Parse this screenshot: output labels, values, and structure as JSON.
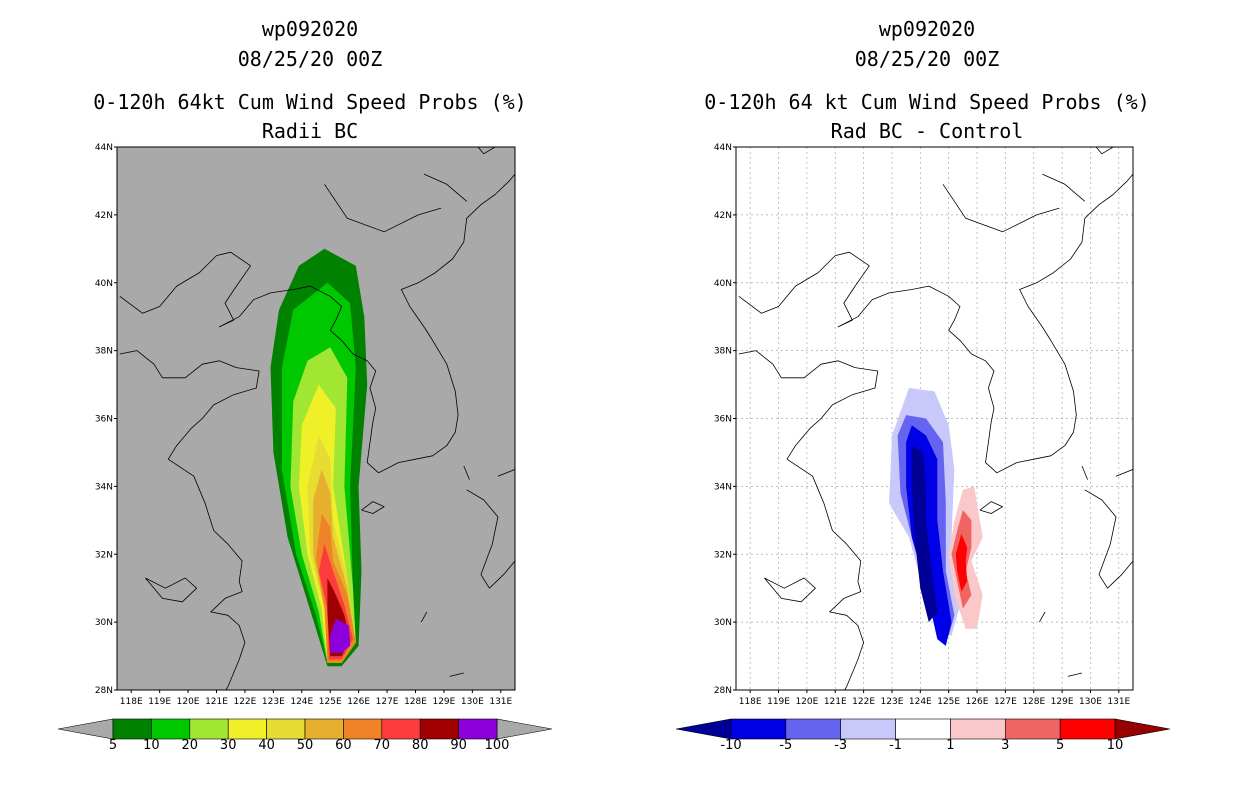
{
  "chart_data": [
    {
      "type": "contour-map",
      "title_lines": [
        "wp092020",
        "08/25/20 00Z",
        "0-120h 64kt Cum Wind Speed Probs (%)",
        "Radii BC"
      ],
      "lon_range": [
        117.5,
        131.5
      ],
      "lat_range": [
        28,
        44
      ],
      "x_ticks": [
        "118E",
        "119E",
        "120E",
        "121E",
        "122E",
        "123E",
        "124E",
        "125E",
        "126E",
        "127E",
        "128E",
        "129E",
        "130E",
        "131E"
      ],
      "y_ticks": [
        "28N",
        "30N",
        "32N",
        "34N",
        "36N",
        "38N",
        "40N",
        "42N",
        "44N"
      ],
      "background": "#a9a9a9",
      "grid": false,
      "colorbar": {
        "levels": [
          "5",
          "10",
          "20",
          "30",
          "40",
          "50",
          "60",
          "70",
          "80",
          "90",
          "100"
        ],
        "colors": [
          "#008200",
          "#00c800",
          "#a0e632",
          "#f0f028",
          "#e6dc32",
          "#e6af2d",
          "#f08228",
          "#fa3c3c",
          "#a00000",
          "#8c00dc"
        ],
        "under_color": "#a9a9a9",
        "over_color": "#a9a9a9"
      },
      "contours": [
        {
          "level": 5,
          "color": "#008200",
          "points": [
            [
              124.8,
              41.0
            ],
            [
              125.9,
              40.5
            ],
            [
              126.2,
              39.0
            ],
            [
              126.3,
              37.0
            ],
            [
              126.0,
              34.0
            ],
            [
              126.1,
              31.5
            ],
            [
              126.0,
              29.3
            ],
            [
              125.4,
              28.7
            ],
            [
              124.9,
              28.7
            ],
            [
              124.5,
              29.8
            ],
            [
              123.5,
              32.5
            ],
            [
              123.0,
              35.0
            ],
            [
              122.9,
              37.5
            ],
            [
              123.2,
              39.2
            ],
            [
              123.9,
              40.5
            ]
          ]
        },
        {
          "level": 10,
          "color": "#00c800",
          "points": [
            [
              124.9,
              40.0
            ],
            [
              125.7,
              39.4
            ],
            [
              125.9,
              37.5
            ],
            [
              125.7,
              34.0
            ],
            [
              125.8,
              31.0
            ],
            [
              125.9,
              29.4
            ],
            [
              125.4,
              28.8
            ],
            [
              124.9,
              28.8
            ],
            [
              124.5,
              30.2
            ],
            [
              123.8,
              32.0
            ],
            [
              123.3,
              34.5
            ],
            [
              123.3,
              37.5
            ],
            [
              123.7,
              39.2
            ]
          ]
        },
        {
          "level": 20,
          "color": "#a0e632",
          "points": [
            [
              125.0,
              38.1
            ],
            [
              125.6,
              37.2
            ],
            [
              125.5,
              34.0
            ],
            [
              125.8,
              31.0
            ],
            [
              125.9,
              29.4
            ],
            [
              125.4,
              28.8
            ],
            [
              124.9,
              28.8
            ],
            [
              124.6,
              30.3
            ],
            [
              124.0,
              32.0
            ],
            [
              123.6,
              34.0
            ],
            [
              123.7,
              36.5
            ],
            [
              124.2,
              37.7
            ]
          ]
        },
        {
          "level": 30,
          "color": "#f0f028",
          "points": [
            [
              124.6,
              37.0
            ],
            [
              125.2,
              36.3
            ],
            [
              125.1,
              34.0
            ],
            [
              125.6,
              31.3
            ],
            [
              125.9,
              29.4
            ],
            [
              125.4,
              28.8
            ],
            [
              124.9,
              28.8
            ],
            [
              124.7,
              30.4
            ],
            [
              124.2,
              32.0
            ],
            [
              123.9,
              34.0
            ],
            [
              124.0,
              35.8
            ]
          ]
        },
        {
          "level": 40,
          "color": "#e6dc32",
          "points": [
            [
              124.6,
              35.5
            ],
            [
              125.0,
              34.8
            ],
            [
              125.1,
              33.0
            ],
            [
              125.6,
              31.3
            ],
            [
              125.9,
              29.4
            ],
            [
              125.4,
              28.8
            ],
            [
              124.9,
              28.8
            ],
            [
              124.8,
              30.4
            ],
            [
              124.3,
              32.0
            ],
            [
              124.2,
              34.0
            ]
          ]
        },
        {
          "level": 50,
          "color": "#e6af2d",
          "points": [
            [
              124.7,
              34.5
            ],
            [
              125.0,
              33.8
            ],
            [
              125.1,
              32.5
            ],
            [
              125.6,
              31.0
            ],
            [
              125.9,
              29.4
            ],
            [
              125.4,
              28.8
            ],
            [
              124.9,
              28.8
            ],
            [
              124.8,
              30.4
            ],
            [
              124.4,
              32.0
            ],
            [
              124.4,
              33.6
            ]
          ]
        },
        {
          "level": 60,
          "color": "#f08228",
          "points": [
            [
              124.7,
              33.2
            ],
            [
              125.0,
              32.8
            ],
            [
              125.1,
              31.8
            ],
            [
              125.6,
              30.8
            ],
            [
              125.9,
              29.4
            ],
            [
              125.4,
              28.8
            ],
            [
              124.9,
              28.8
            ],
            [
              124.8,
              30.4
            ],
            [
              124.5,
              31.9
            ]
          ]
        },
        {
          "level": 70,
          "color": "#fa3c3c",
          "points": [
            [
              124.8,
              32.3
            ],
            [
              125.1,
              31.5
            ],
            [
              125.5,
              30.5
            ],
            [
              125.8,
              29.5
            ],
            [
              125.4,
              28.9
            ],
            [
              124.95,
              28.9
            ],
            [
              124.9,
              30.4
            ],
            [
              124.6,
              31.5
            ]
          ]
        },
        {
          "level": 80,
          "color": "#a00000",
          "points": [
            [
              124.9,
              31.3
            ],
            [
              125.2,
              30.8
            ],
            [
              125.5,
              30.2
            ],
            [
              125.7,
              29.5
            ],
            [
              125.4,
              29.0
            ],
            [
              125.0,
              29.0
            ],
            [
              124.9,
              30.3
            ]
          ]
        },
        {
          "level": 90,
          "color": "#8c00dc",
          "points": [
            [
              125.2,
              30.1
            ],
            [
              125.65,
              29.9
            ],
            [
              125.7,
              29.3
            ],
            [
              125.4,
              29.1
            ],
            [
              125.0,
              29.1
            ],
            [
              125.0,
              29.6
            ]
          ]
        }
      ]
    },
    {
      "type": "contour-map",
      "title_lines": [
        "wp092020",
        "08/25/20 00Z",
        "0-120h 64 kt Cum Wind Speed Probs (%)",
        "Rad BC - Control"
      ],
      "lon_range": [
        117.5,
        131.5
      ],
      "lat_range": [
        28,
        44
      ],
      "x_ticks": [
        "118E",
        "119E",
        "120E",
        "121E",
        "122E",
        "123E",
        "124E",
        "125E",
        "126E",
        "127E",
        "128E",
        "129E",
        "130E",
        "131E"
      ],
      "y_ticks": [
        "28N",
        "30N",
        "32N",
        "34N",
        "36N",
        "38N",
        "40N",
        "42N",
        "44N"
      ],
      "background": "#ffffff",
      "grid": true,
      "colorbar": {
        "levels": [
          "-10",
          "-5",
          "-3",
          "-1",
          "1",
          "3",
          "5",
          "10"
        ],
        "colors": [
          "#0000e6",
          "#6464f0",
          "#c8c8fa",
          "#ffffff",
          "#fac8c8",
          "#f06464",
          "#ff0000"
        ],
        "under_color": "#000096",
        "over_color": "#960000"
      },
      "contours": [
        {
          "level": -1,
          "color": "#c8c8fa",
          "points": [
            [
              123.6,
              36.9
            ],
            [
              124.5,
              36.8
            ],
            [
              125.0,
              35.8
            ],
            [
              125.2,
              34.5
            ],
            [
              125.1,
              32.5
            ],
            [
              125.4,
              30.5
            ],
            [
              125.1,
              29.6
            ],
            [
              124.7,
              29.7
            ],
            [
              124.1,
              31.0
            ],
            [
              123.6,
              32.5
            ],
            [
              122.9,
              33.5
            ],
            [
              123.0,
              35.5
            ]
          ]
        },
        {
          "level": -3,
          "color": "#6464f0",
          "points": [
            [
              123.5,
              36.1
            ],
            [
              124.2,
              36.0
            ],
            [
              124.8,
              35.3
            ],
            [
              124.9,
              33.5
            ],
            [
              124.9,
              31.5
            ],
            [
              125.2,
              30.2
            ],
            [
              125.0,
              29.6
            ],
            [
              124.7,
              29.7
            ],
            [
              124.2,
              31.2
            ],
            [
              123.7,
              32.5
            ],
            [
              123.3,
              33.8
            ],
            [
              123.2,
              35.5
            ]
          ]
        },
        {
          "level": -5,
          "color": "#0000e6",
          "points": [
            [
              123.7,
              35.8
            ],
            [
              124.2,
              35.5
            ],
            [
              124.6,
              34.8
            ],
            [
              124.6,
              33.0
            ],
            [
              124.8,
              31.5
            ],
            [
              125.1,
              30.0
            ],
            [
              124.9,
              29.3
            ],
            [
              124.6,
              29.5
            ],
            [
              124.2,
              31.0
            ],
            [
              123.7,
              32.5
            ],
            [
              123.5,
              34.0
            ],
            [
              123.5,
              35.3
            ]
          ]
        },
        {
          "level": -10,
          "color": "#000096",
          "points": [
            [
              123.7,
              35.2
            ],
            [
              124.1,
              35.0
            ],
            [
              124.2,
              34.0
            ],
            [
              124.2,
              33.0
            ],
            [
              124.4,
              31.5
            ],
            [
              124.6,
              30.3
            ],
            [
              124.3,
              30.0
            ],
            [
              124.0,
              31.0
            ],
            [
              123.8,
              32.5
            ],
            [
              123.7,
              34.0
            ]
          ]
        },
        {
          "level": 1,
          "color": "#fac8c8",
          "points": [
            [
              125.5,
              33.9
            ],
            [
              125.9,
              34.0
            ],
            [
              126.0,
              33.5
            ],
            [
              126.2,
              32.5
            ],
            [
              125.8,
              31.8
            ],
            [
              126.2,
              30.8
            ],
            [
              126.0,
              29.8
            ],
            [
              125.6,
              29.8
            ],
            [
              125.2,
              30.8
            ],
            [
              125.0,
              32.0
            ],
            [
              125.2,
              33.0
            ]
          ]
        },
        {
          "level": 3,
          "color": "#f06464",
          "points": [
            [
              125.5,
              33.3
            ],
            [
              125.8,
              33.0
            ],
            [
              125.8,
              32.2
            ],
            [
              125.6,
              31.5
            ],
            [
              125.8,
              30.8
            ],
            [
              125.5,
              30.4
            ],
            [
              125.3,
              31.2
            ],
            [
              125.1,
              32.0
            ],
            [
              125.3,
              32.7
            ]
          ]
        },
        {
          "level": 5,
          "color": "#ff0000",
          "points": [
            [
              125.45,
              32.6
            ],
            [
              125.65,
              32.2
            ],
            [
              125.6,
              31.8
            ],
            [
              125.65,
              31.2
            ],
            [
              125.45,
              30.9
            ],
            [
              125.3,
              31.5
            ],
            [
              125.25,
              32.0
            ]
          ]
        }
      ]
    }
  ]
}
